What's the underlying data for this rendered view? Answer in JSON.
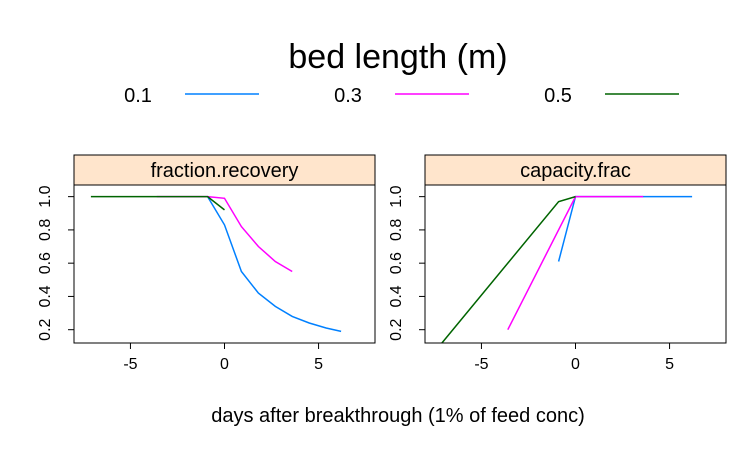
{
  "chart_data": {
    "type": "line",
    "title": "",
    "legend": {
      "title": "bed length (m)",
      "position": "top",
      "entries": [
        {
          "label": "0.1",
          "color": "#0080ff"
        },
        {
          "label": "0.3",
          "color": "#ff00ff"
        },
        {
          "label": "0.5",
          "color": "#006400"
        }
      ]
    },
    "xlabel": "days after breakthrough (1% of feed conc)",
    "ylabel": "",
    "xlim": [
      -8,
      8
    ],
    "ylim": [
      0.12,
      1.07
    ],
    "xticks": [
      "-5",
      "0",
      "5"
    ],
    "yticks": [
      "0.2",
      "0.4",
      "0.6",
      "0.8",
      "1.0"
    ],
    "grid": false,
    "panels": [
      {
        "name": "fraction.recovery",
        "series": [
          {
            "name": "0.1",
            "color": "#0080ff",
            "x": [
              -0.9,
              0,
              0.9,
              1.8,
              2.7,
              3.6,
              4.5,
              5.4,
              6.2
            ],
            "y": [
              1.0,
              0.83,
              0.55,
              0.42,
              0.34,
              0.28,
              0.24,
              0.21,
              0.19
            ]
          },
          {
            "name": "0.3",
            "color": "#ff00ff",
            "x": [
              -3.6,
              -2.7,
              -1.8,
              -0.9,
              0,
              0.9,
              1.8,
              2.7,
              3.6
            ],
            "y": [
              1.0,
              1.0,
              1.0,
              1.0,
              0.99,
              0.82,
              0.7,
              0.61,
              0.55
            ]
          },
          {
            "name": "0.5",
            "color": "#006400",
            "x": [
              -7.1,
              -6.0,
              -4.9,
              -3.8,
              -2.7,
              -1.6,
              -0.9,
              0
            ],
            "y": [
              1.0,
              1.0,
              1.0,
              1.0,
              1.0,
              1.0,
              1.0,
              0.92
            ]
          }
        ]
      },
      {
        "name": "capacity.frac",
        "series": [
          {
            "name": "0.1",
            "color": "#0080ff",
            "x": [
              -0.9,
              0,
              0.9,
              1.8,
              2.7,
              3.6,
              4.5,
              5.4,
              6.2
            ],
            "y": [
              0.61,
              1.0,
              1.0,
              1.0,
              1.0,
              1.0,
              1.0,
              1.0,
              1.0
            ]
          },
          {
            "name": "0.3",
            "color": "#ff00ff",
            "x": [
              -3.6,
              0,
              0.9,
              1.8,
              2.7,
              3.6
            ],
            "y": [
              0.2,
              1.0,
              1.0,
              1.0,
              1.0,
              1.0
            ]
          },
          {
            "name": "0.5",
            "color": "#006400",
            "x": [
              -7.1,
              -0.9,
              0
            ],
            "y": [
              0.12,
              0.97,
              1.0
            ]
          }
        ]
      }
    ]
  }
}
